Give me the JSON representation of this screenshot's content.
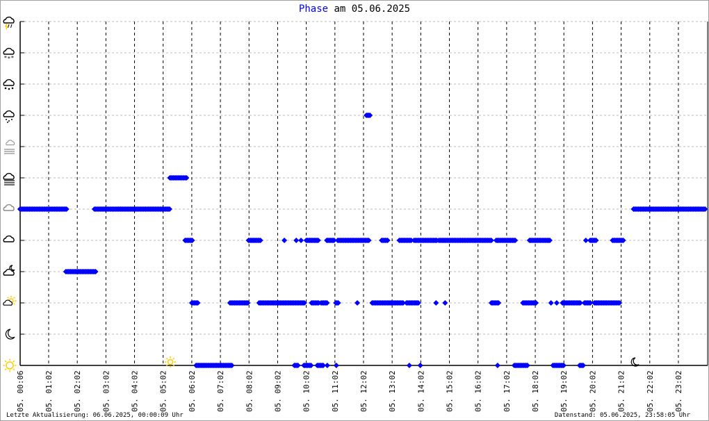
{
  "title": {
    "series": "Phase",
    "rest": " am 05.06.2025"
  },
  "footer": {
    "last_update": "Letzte Aktualisierung: 06.06.2025, 00:00:09 Uhr",
    "data_state": "Datenstand: 05.06.2025, 23:58:05 Uhr"
  },
  "chart_data": {
    "type": "scatter",
    "title": "Phase am 05.06.2025",
    "xlim": [
      "00:02",
      "23:58"
    ],
    "x_tick_labels": [
      "05. 00:06",
      "05. 01:02",
      "05. 02:02",
      "05. 03:02",
      "05. 04:02",
      "05. 05:02",
      "05. 06:02",
      "05. 07:02",
      "05. 08:02",
      "05. 09:02",
      "05. 10:02",
      "05. 11:02",
      "05. 12:02",
      "05. 13:02",
      "05. 14:02",
      "05. 15:02",
      "05. 16:02",
      "05. 17:02",
      "05. 18:02",
      "05. 19:02",
      "05. 20:02",
      "05. 21:02",
      "05. 22:02",
      "05. 23:02"
    ],
    "y_categories": [
      "sun-icon",
      "moon-icon",
      "partly-sunny-icon",
      "partly-cloudy-night-icon",
      "cloud-icon",
      "overcast-icon",
      "fog-icon",
      "haze-icon",
      "rain-icon",
      "sleet-icon",
      "snow-icon",
      "thunderstorm-icon"
    ],
    "grid": true,
    "marker_color": "#0000ff",
    "sunrise": {
      "time": "05:17",
      "icon": "sunrise-sun-icon",
      "color": "#ffcc00"
    },
    "sunset": {
      "time": "21:26",
      "icon": "sunset-moon-icon"
    },
    "segments": [
      [
        "00:02",
        "01:41",
        5
      ],
      [
        "02:38",
        "05:17",
        5
      ],
      [
        "21:28",
        "23:58",
        5
      ],
      [
        "01:38",
        "02:41",
        3
      ],
      [
        "05:16",
        "05:52",
        6
      ],
      [
        "12:08",
        "12:16",
        8
      ],
      [
        "05:48",
        "06:04",
        4
      ],
      [
        "08:01",
        "08:28",
        4
      ],
      [
        "09:16",
        "09:16",
        4
      ],
      [
        "09:41",
        "09:41",
        4
      ],
      [
        "09:51",
        "09:51",
        4
      ],
      [
        "10:02",
        "10:28",
        4
      ],
      [
        "10:45",
        "11:02",
        4
      ],
      [
        "11:08",
        "12:14",
        4
      ],
      [
        "12:40",
        "12:54",
        4
      ],
      [
        "13:17",
        "13:43",
        4
      ],
      [
        "13:48",
        "14:37",
        4
      ],
      [
        "14:40",
        "16:30",
        4
      ],
      [
        "16:40",
        "17:20",
        4
      ],
      [
        "17:50",
        "18:34",
        4
      ],
      [
        "19:48",
        "19:48",
        4
      ],
      [
        "19:57",
        "20:10",
        4
      ],
      [
        "20:44",
        "21:07",
        4
      ],
      [
        "06:02",
        "06:16",
        2
      ],
      [
        "07:22",
        "08:01",
        2
      ],
      [
        "08:23",
        "09:58",
        2
      ],
      [
        "10:13",
        "10:28",
        2
      ],
      [
        "10:33",
        "10:46",
        2
      ],
      [
        "11:04",
        "11:09",
        2
      ],
      [
        "11:49",
        "11:49",
        2
      ],
      [
        "12:20",
        "13:26",
        2
      ],
      [
        "13:32",
        "13:57",
        2
      ],
      [
        "14:34",
        "14:34",
        2
      ],
      [
        "14:53",
        "14:53",
        2
      ],
      [
        "16:30",
        "16:45",
        2
      ],
      [
        "17:36",
        "18:04",
        2
      ],
      [
        "18:35",
        "18:35",
        2
      ],
      [
        "18:47",
        "18:47",
        2
      ],
      [
        "18:59",
        "19:38",
        2
      ],
      [
        "19:45",
        "19:59",
        2
      ],
      [
        "20:06",
        "20:59",
        2
      ],
      [
        "06:11",
        "07:26",
        0
      ],
      [
        "09:37",
        "09:46",
        0
      ],
      [
        "09:57",
        "10:14",
        0
      ],
      [
        "10:25",
        "10:38",
        0
      ],
      [
        "10:46",
        "10:46",
        0
      ],
      [
        "11:05",
        "11:05",
        0
      ],
      [
        "13:38",
        "13:38",
        0
      ],
      [
        "14:01",
        "14:01",
        0
      ],
      [
        "16:43",
        "16:43",
        0
      ],
      [
        "17:18",
        "17:47",
        0
      ],
      [
        "18:39",
        "19:02",
        0
      ],
      [
        "19:35",
        "19:44",
        0
      ]
    ]
  }
}
